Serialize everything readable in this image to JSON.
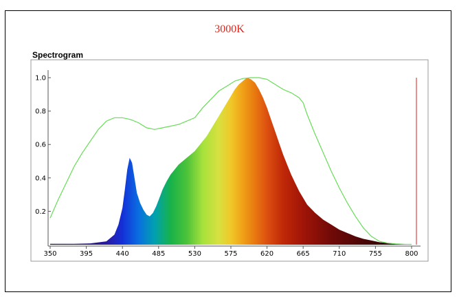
{
  "chart_title": "3000K",
  "panel_label": "Spectrogram",
  "colors": {
    "title": "#d6281e",
    "envelope": "#66dd55",
    "marker": "#d62020"
  },
  "chart_data": {
    "type": "area",
    "title": "3000K",
    "subtitle": "Spectrogram",
    "xlabel": "",
    "ylabel": "",
    "xlim": [
      345,
      810
    ],
    "ylim": [
      0,
      1.05
    ],
    "xticks": [
      350,
      395,
      440,
      485,
      530,
      575,
      620,
      665,
      710,
      755,
      800
    ],
    "yticks": [
      0.2,
      0.4,
      0.6,
      0.8,
      1.0
    ],
    "grid": false,
    "series": [
      {
        "kind": "area",
        "x": [
          350,
          380,
          400,
          420,
          430,
          435,
          440,
          443,
          446,
          449,
          452,
          455,
          458,
          462,
          466,
          470,
          474,
          478,
          482,
          486,
          490,
          495,
          500,
          505,
          510,
          515,
          520,
          525,
          530,
          535,
          540,
          545,
          550,
          555,
          560,
          565,
          570,
          575,
          580,
          585,
          590,
          595,
          600,
          605,
          610,
          615,
          620,
          625,
          630,
          635,
          640,
          645,
          650,
          655,
          660,
          665,
          670,
          680,
          690,
          700,
          710,
          720,
          730,
          740,
          750,
          760,
          770,
          780,
          790,
          800
        ],
        "y": [
          0.005,
          0.005,
          0.008,
          0.02,
          0.06,
          0.12,
          0.22,
          0.33,
          0.45,
          0.52,
          0.49,
          0.4,
          0.31,
          0.25,
          0.21,
          0.18,
          0.17,
          0.19,
          0.23,
          0.28,
          0.33,
          0.38,
          0.42,
          0.45,
          0.48,
          0.5,
          0.52,
          0.54,
          0.56,
          0.59,
          0.62,
          0.65,
          0.69,
          0.73,
          0.77,
          0.81,
          0.85,
          0.89,
          0.93,
          0.96,
          0.98,
          1.0,
          0.99,
          0.97,
          0.93,
          0.88,
          0.82,
          0.75,
          0.68,
          0.61,
          0.54,
          0.48,
          0.42,
          0.37,
          0.32,
          0.28,
          0.24,
          0.19,
          0.15,
          0.12,
          0.09,
          0.07,
          0.05,
          0.035,
          0.025,
          0.015,
          0.01,
          0.006,
          0.003,
          0.002
        ]
      },
      {
        "kind": "line",
        "x": [
          350,
          360,
          370,
          380,
          390,
          400,
          410,
          420,
          430,
          440,
          450,
          460,
          470,
          480,
          490,
          500,
          510,
          520,
          530,
          540,
          550,
          560,
          570,
          580,
          590,
          600,
          610,
          620,
          630,
          640,
          650,
          660,
          665,
          670,
          680,
          690,
          700,
          710,
          720,
          730,
          740,
          750,
          760,
          770,
          780,
          790,
          800
        ],
        "y": [
          0.16,
          0.27,
          0.37,
          0.47,
          0.55,
          0.62,
          0.69,
          0.74,
          0.76,
          0.76,
          0.75,
          0.73,
          0.7,
          0.69,
          0.7,
          0.71,
          0.72,
          0.74,
          0.76,
          0.82,
          0.87,
          0.92,
          0.95,
          0.98,
          0.995,
          1.0,
          1.0,
          0.99,
          0.96,
          0.93,
          0.91,
          0.88,
          0.85,
          0.78,
          0.66,
          0.55,
          0.44,
          0.34,
          0.25,
          0.17,
          0.1,
          0.05,
          0.02,
          0.01,
          0.005,
          0.003,
          0.002
        ]
      }
    ],
    "markers": [
      {
        "x": 806,
        "ymax": 1.0
      }
    ]
  }
}
